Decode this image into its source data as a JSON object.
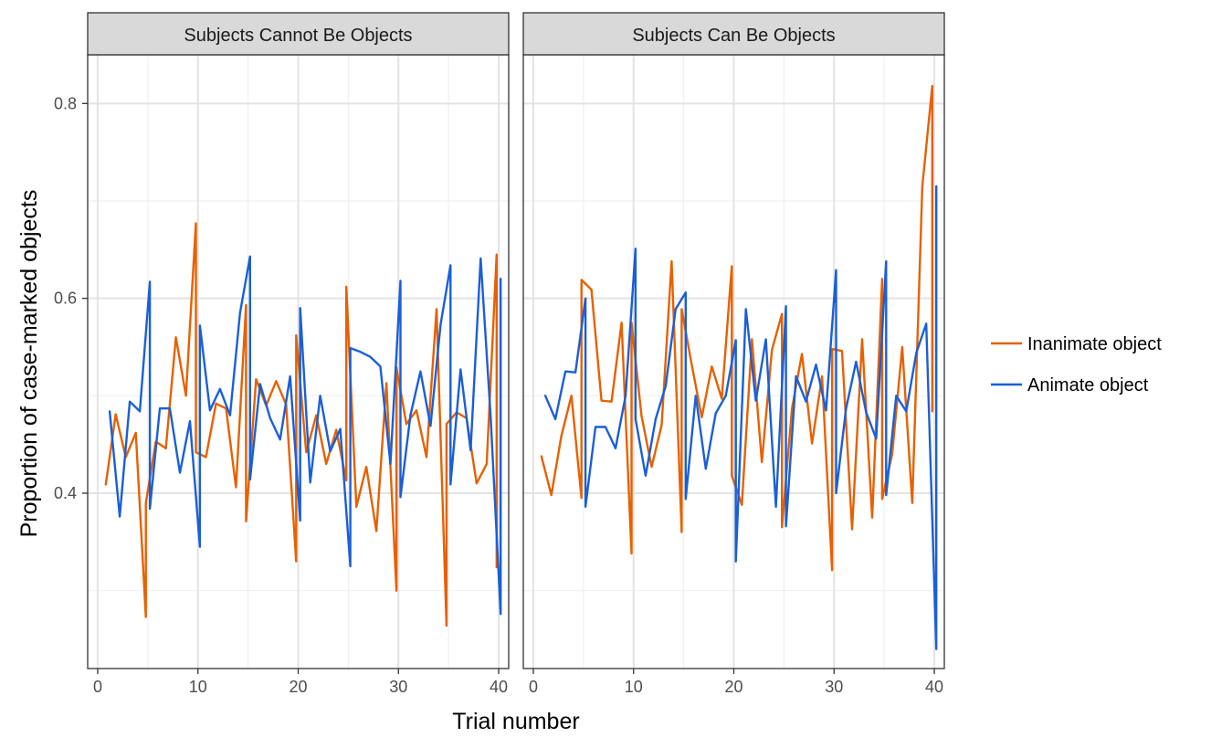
{
  "chart_data": {
    "type": "line",
    "facets": [
      {
        "title": "Subjects Cannot Be Objects",
        "series": [
          {
            "name": "Inanimate object",
            "color": "#e66101",
            "x": [
              0.8,
              1.8,
              2.8,
              3.8,
              4.8,
              4.8,
              5.8,
              6.8,
              7.8,
              8.8,
              9.8,
              9.8,
              10.8,
              11.8,
              12.8,
              13.8,
              14.8,
              14.8,
              15.8,
              16.8,
              17.8,
              18.8,
              19.8,
              19.8,
              20.8,
              21.8,
              22.8,
              23.8,
              24.8,
              24.8,
              25.8,
              26.8,
              27.8,
              28.8,
              29.8,
              29.8,
              30.8,
              31.8,
              32.8,
              33.8,
              34.8,
              34.8,
              35.8,
              36.8,
              37.8,
              38.8,
              39.8,
              39.8
            ],
            "values": [
              0.409,
              0.481,
              0.437,
              0.462,
              0.273,
              0.39,
              0.453,
              0.446,
              0.56,
              0.5,
              0.677,
              0.442,
              0.437,
              0.492,
              0.487,
              0.406,
              0.593,
              0.371,
              0.517,
              0.49,
              0.515,
              0.491,
              0.33,
              0.562,
              0.442,
              0.48,
              0.43,
              0.465,
              0.413,
              0.612,
              0.386,
              0.427,
              0.361,
              0.513,
              0.3,
              0.529,
              0.471,
              0.485,
              0.437,
              0.589,
              0.264,
              0.471,
              0.483,
              0.477,
              0.41,
              0.43,
              0.645,
              0.324
            ]
          },
          {
            "name": "Animate object",
            "color": "#1a5fd8",
            "x": [
              1.2,
              2.2,
              3.2,
              4.2,
              5.2,
              5.2,
              6.2,
              7.2,
              8.2,
              9.2,
              10.2,
              10.2,
              11.2,
              12.2,
              13.2,
              14.2,
              15.2,
              15.2,
              16.2,
              17.2,
              18.2,
              19.2,
              20.2,
              20.2,
              21.2,
              22.2,
              23.2,
              24.2,
              25.2,
              25.2,
              26.2,
              27.2,
              28.2,
              29.2,
              30.2,
              30.2,
              31.2,
              32.2,
              33.2,
              34.2,
              35.2,
              35.2,
              36.2,
              37.2,
              38.2,
              39.2,
              40.2,
              40.2
            ],
            "values": [
              0.484,
              0.376,
              0.494,
              0.484,
              0.617,
              0.384,
              0.487,
              0.487,
              0.421,
              0.474,
              0.345,
              0.572,
              0.485,
              0.507,
              0.48,
              0.585,
              0.643,
              0.414,
              0.512,
              0.477,
              0.455,
              0.52,
              0.372,
              0.59,
              0.411,
              0.5,
              0.443,
              0.466,
              0.325,
              0.549,
              0.545,
              0.54,
              0.53,
              0.43,
              0.618,
              0.396,
              0.48,
              0.525,
              0.469,
              0.573,
              0.634,
              0.409,
              0.527,
              0.444,
              0.641,
              0.479,
              0.276,
              0.62
            ]
          }
        ]
      },
      {
        "title": "Subjects Can Be Objects",
        "series": [
          {
            "name": "Inanimate object",
            "color": "#e66101",
            "x": [
              0.8,
              1.8,
              2.8,
              3.8,
              4.8,
              4.8,
              5.8,
              6.8,
              7.8,
              8.8,
              9.8,
              9.8,
              10.8,
              11.8,
              12.8,
              13.8,
              14.8,
              14.8,
              15.8,
              16.8,
              17.8,
              18.8,
              19.8,
              19.8,
              20.8,
              21.8,
              22.8,
              23.8,
              24.8,
              24.8,
              25.8,
              26.8,
              27.8,
              28.8,
              29.8,
              29.8,
              30.8,
              31.8,
              32.8,
              33.8,
              34.8,
              34.8,
              35.8,
              36.8,
              37.8,
              38.8,
              39.8,
              39.8
            ],
            "values": [
              0.438,
              0.398,
              0.459,
              0.5,
              0.395,
              0.619,
              0.609,
              0.495,
              0.494,
              0.575,
              0.338,
              0.575,
              0.479,
              0.427,
              0.47,
              0.638,
              0.36,
              0.589,
              0.532,
              0.478,
              0.53,
              0.497,
              0.633,
              0.418,
              0.388,
              0.558,
              0.432,
              0.547,
              0.584,
              0.365,
              0.487,
              0.543,
              0.451,
              0.52,
              0.321,
              0.548,
              0.546,
              0.363,
              0.558,
              0.375,
              0.62,
              0.394,
              0.44,
              0.55,
              0.39,
              0.715,
              0.818,
              0.484
            ]
          },
          {
            "name": "Animate object",
            "color": "#1a5fd8",
            "x": [
              1.2,
              2.2,
              3.2,
              4.2,
              5.2,
              5.2,
              6.2,
              7.2,
              8.2,
              9.2,
              10.2,
              10.2,
              11.2,
              12.2,
              13.2,
              14.2,
              15.2,
              15.2,
              16.2,
              17.2,
              18.2,
              19.2,
              20.2,
              20.2,
              21.2,
              22.2,
              23.2,
              24.2,
              25.2,
              25.2,
              26.2,
              27.2,
              28.2,
              29.2,
              30.2,
              30.2,
              31.2,
              32.2,
              33.2,
              34.2,
              35.2,
              35.2,
              36.2,
              37.2,
              38.2,
              39.2,
              40.2,
              40.2
            ],
            "values": [
              0.5,
              0.476,
              0.525,
              0.524,
              0.6,
              0.386,
              0.468,
              0.468,
              0.446,
              0.5,
              0.651,
              0.476,
              0.418,
              0.476,
              0.51,
              0.589,
              0.606,
              0.394,
              0.5,
              0.425,
              0.482,
              0.5,
              0.557,
              0.33,
              0.589,
              0.495,
              0.558,
              0.386,
              0.592,
              0.366,
              0.52,
              0.494,
              0.532,
              0.485,
              0.629,
              0.4,
              0.487,
              0.535,
              0.483,
              0.456,
              0.638,
              0.398,
              0.5,
              0.484,
              0.544,
              0.574,
              0.24,
              0.715
            ]
          }
        ]
      }
    ],
    "xlabel": "Trial number",
    "ylabel": "Proportion of case-marked objects",
    "xlim": [
      -1,
      41
    ],
    "ylim": [
      0.22,
      0.85
    ],
    "xticks": [
      0,
      10,
      20,
      30,
      40
    ],
    "yticks": [
      0.4,
      0.6,
      0.8
    ],
    "grid": true,
    "legend": {
      "placement": "right",
      "entries": [
        {
          "label": "Inanimate object",
          "color": "#e66101"
        },
        {
          "label": "Animate object",
          "color": "#1a5fd8"
        }
      ]
    }
  }
}
